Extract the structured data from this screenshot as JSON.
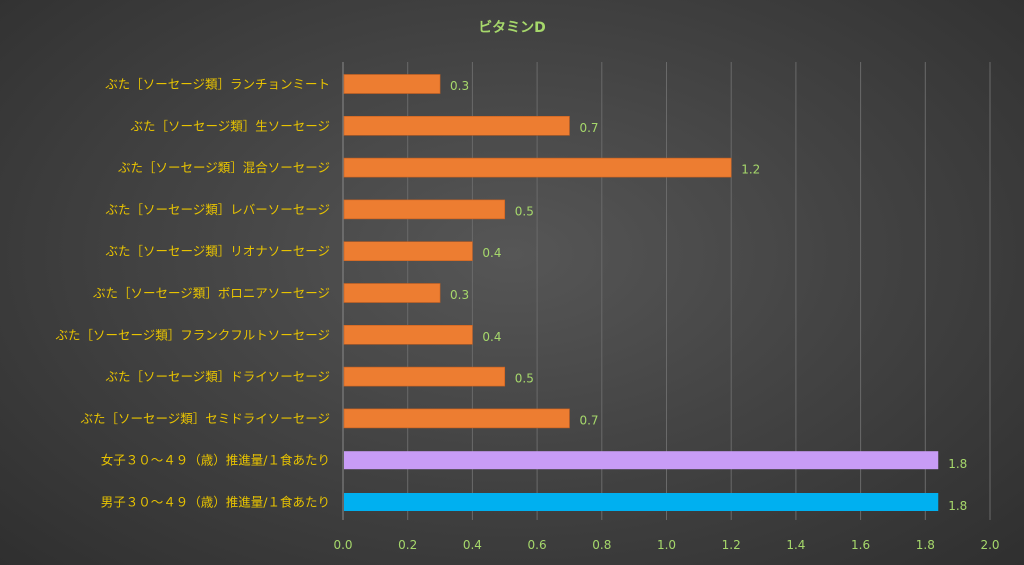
{
  "chart_data": {
    "type": "bar",
    "orientation": "horizontal",
    "title": "ビタミンD",
    "xlabel": "",
    "ylabel": "",
    "xlim": [
      0,
      2.0
    ],
    "x_ticks": [
      "0.0",
      "0.2",
      "0.4",
      "0.6",
      "0.8",
      "1.0",
      "1.2",
      "1.4",
      "1.6",
      "1.8",
      "2.0"
    ],
    "grid": true,
    "categories": [
      "ぶた［ソーセージ類］ランチョンミート",
      "ぶた［ソーセージ類］生ソーセージ",
      "ぶた［ソーセージ類］混合ソーセージ",
      "ぶた［ソーセージ類］レバーソーセージ",
      "ぶた［ソーセージ類］リオナソーセージ",
      "ぶた［ソーセージ類］ボロニアソーセージ",
      "ぶた［ソーセージ類］フランクフルトソーセージ",
      "ぶた［ソーセージ類］ドライソーセージ",
      "ぶた［ソーセージ類］セミドライソーセージ",
      "女子３０～４９（歳）推進量/１食あたり",
      "男子３０～４９（歳）推進量/１食あたり"
    ],
    "values": [
      0.3,
      0.7,
      1.2,
      0.5,
      0.4,
      0.3,
      0.4,
      0.5,
      0.7,
      1.84,
      1.84
    ],
    "data_labels": [
      "0.3",
      "0.7",
      "1.2",
      "0.5",
      "0.4",
      "0.3",
      "0.4",
      "0.5",
      "0.7",
      "1.8",
      "1.8"
    ],
    "bar_colors": [
      "#ed7d31",
      "#ed7d31",
      "#ed7d31",
      "#ed7d31",
      "#ed7d31",
      "#ed7d31",
      "#ed7d31",
      "#ed7d31",
      "#ed7d31",
      "#c89cf6",
      "#00b0f0"
    ],
    "colors": {
      "title": "#a6d86b",
      "category_label": "#e8c300",
      "tick_label": "#a6d86b",
      "data_label": "#a6d86b",
      "grid": "#6a6a6a"
    }
  }
}
